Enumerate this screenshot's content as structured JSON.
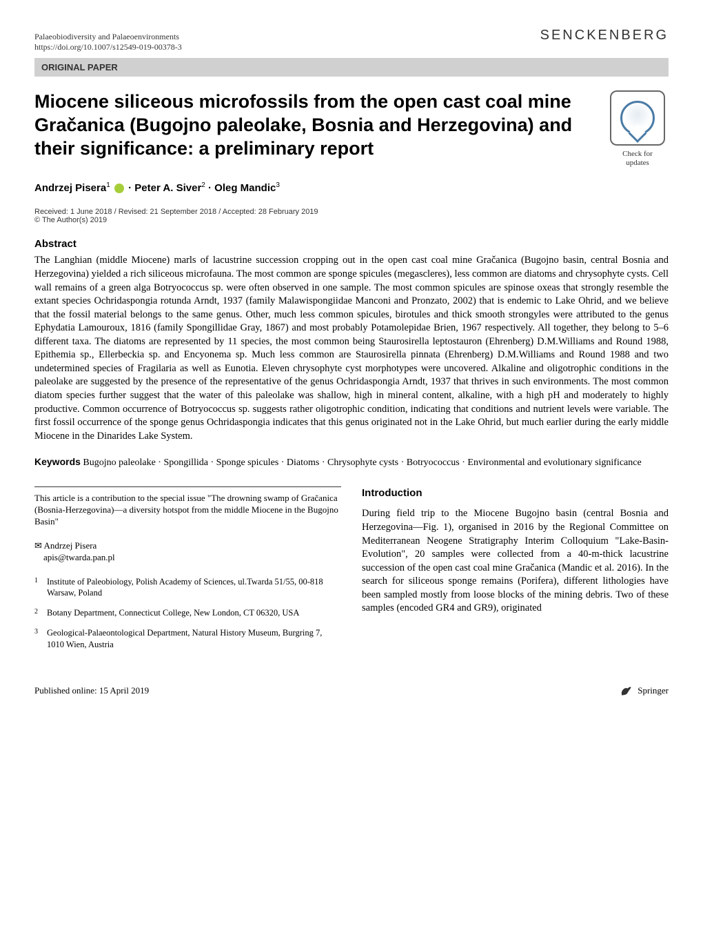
{
  "header": {
    "journal": "Palaeobiodiversity and Palaeoenvironments",
    "doi": "https://doi.org/10.1007/s12549-019-00378-3",
    "publisher": "SENCKENBERG",
    "section_label": "ORIGINAL PAPER"
  },
  "badge": {
    "line1": "Check for",
    "line2": "updates"
  },
  "title": "Miocene siliceous microfossils from the open cast coal mine Gračanica (Bugojno paleolake, Bosnia and Herzegovina) and their significance: a preliminary report",
  "authors_html": "Andrzej Pisera<sup>1</sup> <span class=\"orcid-icon\" data-name=\"orcid-icon\" data-interactable=\"false\"></span> · Peter A. Siver<sup>2</sup> · Oleg Mandic<sup>3</sup>",
  "dates": "Received: 1 June 2018 / Revised: 21 September 2018 / Accepted: 28 February 2019",
  "copyright": "© The Author(s) 2019",
  "abstract": {
    "heading": "Abstract",
    "body": "The Langhian (middle Miocene) marls of lacustrine succession cropping out in the open cast coal mine Gračanica (Bugojno basin, central Bosnia and Herzegovina) yielded a rich siliceous microfauna. The most common are sponge spicules (megascleres), less common are diatoms and chrysophyte cysts. Cell wall remains of a green alga Botryococcus sp. were often observed in one sample. The most common spicules are spinose oxeas that strongly resemble the extant species Ochridaspongia rotunda Arndt, 1937 (family Malawispongiidae Manconi and Pronzato, 2002) that is endemic to Lake Ohrid, and we believe that the fossil material belongs to the same genus. Other, much less common spicules, birotules and thick smooth strongyles were attributed to the genus Ephydatia Lamouroux, 1816 (family Spongillidae Gray, 1867) and most probably Potamolepidae Brien, 1967 respectively. All together, they belong to 5–6 different taxa. The diatoms are represented by 11 species, the most common being Staurosirella leptostauron (Ehrenberg) D.M.Williams and Round 1988, Epithemia sp., Ellerbeckia sp. and Encyonema sp. Much less common are Staurosirella pinnata (Ehrenberg) D.M.Williams and Round 1988 and two undetermined species of Fragilaria as well as Eunotia. Eleven chrysophyte cyst morphotypes were uncovered. Alkaline and oligotrophic conditions in the paleolake are suggested by the presence of the representative of the genus Ochridaspongia Arndt, 1937 that thrives in such environments. The most common diatom species further suggest that the water of this paleolake was shallow, high in mineral content, alkaline, with a high pH and moderately to highly productive. Common occurrence of Botryococcus sp. suggests rather oligotrophic condition, indicating that conditions and nutrient levels were variable. The first fossil occurrence of the sponge genus Ochridaspongia indicates that this genus originated not in the Lake Ohrid, but much earlier during the early middle Miocene in the Dinarides Lake System."
  },
  "keywords": {
    "label": "Keywords",
    "text": "Bugojno paleolake · Spongillida · Sponge spicules · Diatoms · Chrysophyte cysts · Botryococcus · Environmental and evolutionary significance"
  },
  "note": "This article is a contribution to the special issue \"The drowning swamp of Gračanica (Bosnia-Herzegovina)—a diversity hotspot from the middle Miocene in the Bugojno Basin\"",
  "corresp": {
    "name": "Andrzej Pisera",
    "email": "apis@twarda.pan.pl"
  },
  "affiliations": [
    {
      "num": "1",
      "text": "Institute of Paleobiology, Polish Academy of Sciences, ul.Twarda 51/55, 00-818 Warsaw, Poland"
    },
    {
      "num": "2",
      "text": "Botany Department, Connecticut College, New London, CT 06320, USA"
    },
    {
      "num": "3",
      "text": "Geological-Palaeontological Department, Natural History Museum, Burgring 7, 1010 Wien, Austria"
    }
  ],
  "intro": {
    "heading": "Introduction",
    "body": "During field trip to the Miocene Bugojno basin (central Bosnia and Herzegovina—Fig. 1), organised in 2016 by the Regional Committee on Mediterranean Neogene Stratigraphy Interim Colloquium \"Lake-Basin-Evolution\", 20 samples were collected from a 40-m-thick lacustrine succession of the open cast coal mine Gračanica (Mandic et al. 2016). In the search for siliceous sponge remains (Porifera), different lithologies have been sampled mostly from loose blocks of the mining debris. Two of these samples (encoded GR4 and GR9), originated"
  },
  "footer": {
    "published": "Published online: 15 April 2019",
    "publisher": "Springer"
  },
  "colors": {
    "section_bar_bg": "#d0d0d0",
    "badge_border": "#666666",
    "badge_circle": "#4a7ba6",
    "orcid": "#a6ce39",
    "text": "#000000"
  }
}
